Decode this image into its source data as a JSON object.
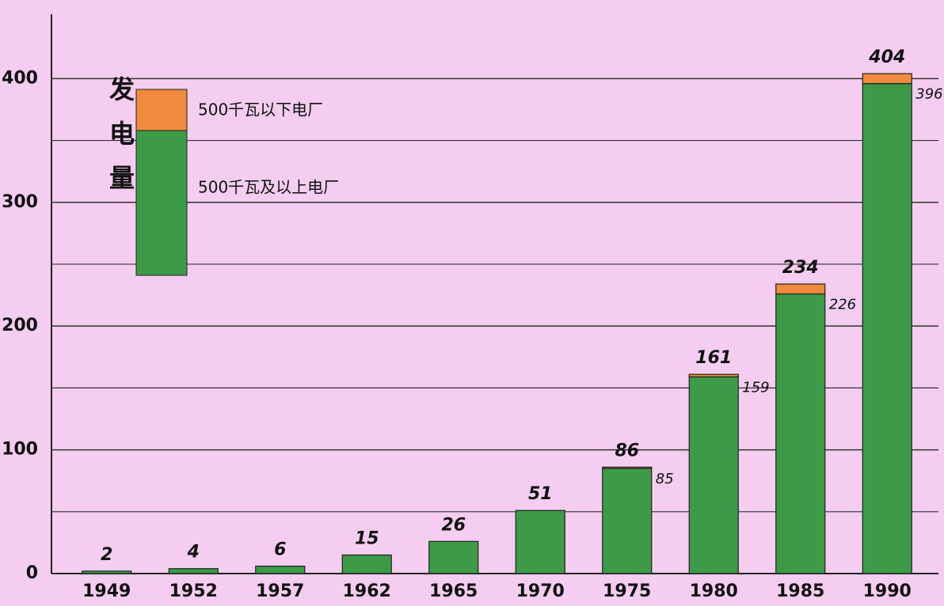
{
  "chart_data": {
    "type": "stacked_bar",
    "legend_title": "发电量",
    "categories": [
      "1949",
      "1952",
      "1957",
      "1962",
      "1965",
      "1970",
      "1975",
      "1980",
      "1985",
      "1990"
    ],
    "series": [
      {
        "name": "500千瓦及以上电厂",
        "color": "#3c9a48",
        "values": [
          2,
          4,
          6,
          15,
          26,
          51,
          85,
          159,
          226,
          396
        ],
        "value_labels": [
          null,
          null,
          null,
          null,
          null,
          null,
          "85",
          "159",
          "226",
          "396"
        ]
      },
      {
        "name": "500千瓦以下电厂",
        "color": "#f08a3c",
        "values": [
          0,
          0,
          0,
          0,
          0,
          0,
          1,
          2,
          8,
          8
        ]
      }
    ],
    "totals": [
      2,
      4,
      6,
      15,
      26,
      51,
      86,
      161,
      234,
      404
    ],
    "ylim": [
      0,
      452
    ],
    "yticks": [
      0,
      100,
      200,
      300,
      400
    ],
    "yminor": [
      50,
      150,
      250,
      350
    ],
    "grid": true
  }
}
